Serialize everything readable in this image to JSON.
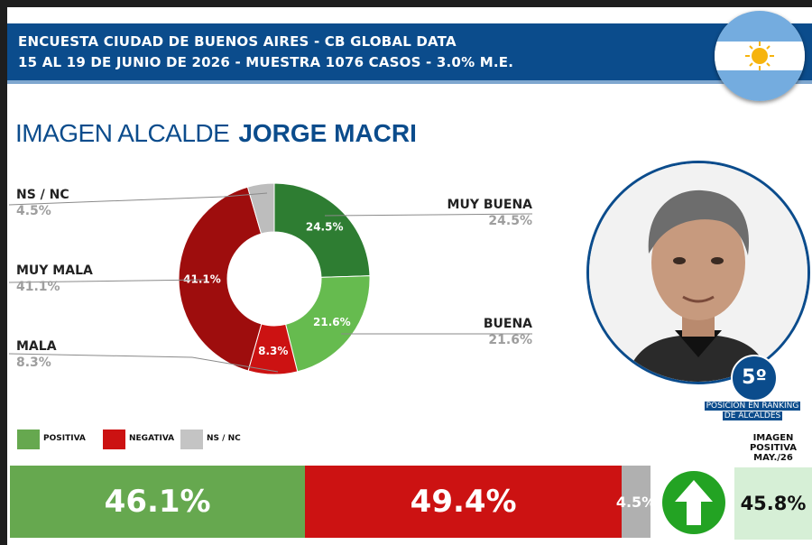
{
  "header": {
    "line1": "ENCUESTA CIUDAD DE BUENOS AIRES - CB GLOBAL DATA",
    "line2": "15 AL 19 DE JUNIO DE 2026 - MUESTRA 1076 CASOS - 3.0% M.E."
  },
  "title": {
    "prefix": "IMAGEN ALCALDE",
    "name": "JORGE MACRI"
  },
  "chart_data": {
    "type": "pie",
    "categories": [
      "MUY BUENA",
      "BUENA",
      "MALA",
      "MUY MALA",
      "NS / NC"
    ],
    "values": [
      24.5,
      21.6,
      8.3,
      41.1,
      4.5
    ],
    "value_labels": [
      "24.5%",
      "21.6%",
      "8.3%",
      "41.1%",
      "4.5%"
    ],
    "colors": [
      "#2e7d32",
      "#66bb4f",
      "#cc1212",
      "#9e0d0d",
      "#bdbdbd"
    ]
  },
  "slice_labels": {
    "muy_buena": {
      "name": "MUY BUENA",
      "value": "24.5%"
    },
    "buena": {
      "name": "BUENA",
      "value": "21.6%"
    },
    "mala": {
      "name": "MALA",
      "value": "8.3%"
    },
    "muy_mala": {
      "name": "MUY MALA",
      "value": "41.1%"
    },
    "nsnc": {
      "name": "NS / NC",
      "value": "4.5%"
    }
  },
  "legend": [
    {
      "label": "POSITIVA",
      "color": "#66a84f"
    },
    {
      "label": "NEGATIVA",
      "color": "#cc1212"
    },
    {
      "label": "NS / NC",
      "color": "#c4c4c4"
    }
  ],
  "ranking": {
    "position": "5º",
    "caption_line1": "POSICIÓN EN RANKING",
    "caption_line2": "DE ALCALDES"
  },
  "summary": {
    "positive": {
      "value": 46.1,
      "label": "46.1%",
      "color": "#66a84f"
    },
    "negative": {
      "value": 49.4,
      "label": "49.4%",
      "color": "#cc1212"
    },
    "nsnc": {
      "value": 4.5,
      "label": "4.5%",
      "color": "#b0b0b0"
    }
  },
  "trend": {
    "direction": "up",
    "icon": "up-arrow-icon",
    "color": "#23a323"
  },
  "previous": {
    "label_line1": "IMAGEN",
    "label_line2": "POSITIVA",
    "label_line3": "MAY./26",
    "value": "45.8%"
  },
  "flag": {
    "icon": "argentina-flag-icon",
    "colors": [
      "#74acdf",
      "#ffffff",
      "#f6b40e"
    ]
  },
  "photo": {
    "icon": "portrait-photo"
  }
}
